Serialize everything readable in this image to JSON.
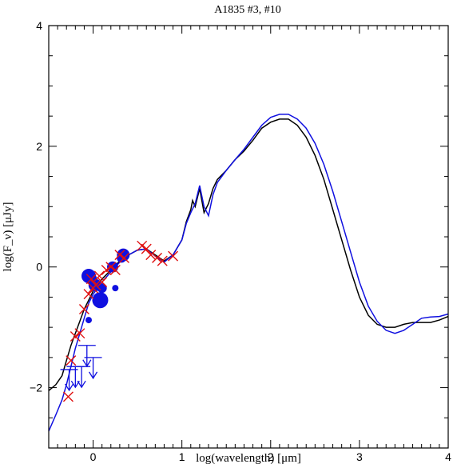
{
  "chart_data": {
    "type": "scatter",
    "title": "A1835 #3, #10",
    "xlabel": "log(wavelength) [μm]",
    "ylabel": "log(F_ν) [μJy]",
    "xlim": [
      -0.5,
      4
    ],
    "ylim": [
      -3,
      4
    ],
    "x_ticks": [
      0,
      1,
      2,
      3,
      4
    ],
    "y_ticks": [
      -2,
      0,
      2,
      4
    ],
    "grid": false,
    "colors": {
      "black_model": "#000000",
      "blue_model": "#1010e0",
      "model_points": "#e01010",
      "data": "#1010e0"
    },
    "series": [
      {
        "style": "line",
        "color": "#000000",
        "x": [
          -0.5,
          -0.42,
          -0.35,
          -0.3,
          -0.25,
          -0.2,
          -0.15,
          -0.1,
          -0.05,
          0.0,
          0.05,
          0.1,
          0.2,
          0.3,
          0.4,
          0.5,
          0.6,
          0.7,
          0.8,
          0.9,
          1.0,
          1.05,
          1.1,
          1.12,
          1.15,
          1.2,
          1.25,
          1.3,
          1.35,
          1.4,
          1.5,
          1.6,
          1.7,
          1.8,
          1.9,
          2.0,
          2.1,
          2.2,
          2.3,
          2.4,
          2.5,
          2.6,
          2.7,
          2.8,
          2.9,
          3.0,
          3.1,
          3.2,
          3.3,
          3.4,
          3.5,
          3.6,
          3.7,
          3.8,
          3.9,
          4.0
        ],
        "y": [
          -2.05,
          -1.95,
          -1.8,
          -1.55,
          -1.3,
          -1.1,
          -0.9,
          -0.7,
          -0.55,
          -0.4,
          -0.3,
          -0.2,
          -0.05,
          0.1,
          0.2,
          0.28,
          0.3,
          0.2,
          0.1,
          0.2,
          0.45,
          0.75,
          0.95,
          1.1,
          1.0,
          1.3,
          0.9,
          1.05,
          1.3,
          1.45,
          1.6,
          1.78,
          1.92,
          2.1,
          2.3,
          2.4,
          2.45,
          2.45,
          2.35,
          2.15,
          1.85,
          1.45,
          0.95,
          0.45,
          -0.05,
          -0.5,
          -0.8,
          -0.95,
          -1.0,
          -1.0,
          -0.95,
          -0.92,
          -0.92,
          -0.92,
          -0.88,
          -0.82
        ]
      },
      {
        "style": "line",
        "color": "#1010e0",
        "x": [
          -0.5,
          -0.42,
          -0.35,
          -0.3,
          -0.25,
          -0.2,
          -0.15,
          -0.1,
          -0.05,
          0.0,
          0.05,
          0.1,
          0.2,
          0.3,
          0.4,
          0.5,
          0.6,
          0.7,
          0.8,
          0.9,
          1.0,
          1.05,
          1.1,
          1.15,
          1.2,
          1.25,
          1.3,
          1.35,
          1.4,
          1.5,
          1.6,
          1.7,
          1.8,
          1.9,
          2.0,
          2.1,
          2.2,
          2.3,
          2.4,
          2.5,
          2.6,
          2.7,
          2.8,
          2.9,
          3.0,
          3.1,
          3.2,
          3.3,
          3.4,
          3.5,
          3.6,
          3.7,
          3.8,
          3.9,
          4.0
        ],
        "y": [
          -2.72,
          -2.45,
          -2.2,
          -1.95,
          -1.65,
          -1.35,
          -1.1,
          -0.85,
          -0.6,
          -0.45,
          -0.35,
          -0.25,
          -0.08,
          0.08,
          0.2,
          0.28,
          0.3,
          0.18,
          0.08,
          0.2,
          0.45,
          0.72,
          0.9,
          1.05,
          1.35,
          1.0,
          0.85,
          1.2,
          1.4,
          1.6,
          1.78,
          1.95,
          2.15,
          2.35,
          2.48,
          2.53,
          2.53,
          2.45,
          2.3,
          2.05,
          1.7,
          1.25,
          0.75,
          0.25,
          -0.25,
          -0.65,
          -0.9,
          -1.05,
          -1.1,
          -1.05,
          -0.95,
          -0.85,
          -0.83,
          -0.82,
          -0.78
        ]
      }
    ],
    "model_points": {
      "marker": "x",
      "color": "#e01010",
      "x": [
        -0.28,
        -0.25,
        -0.2,
        -0.15,
        -0.1,
        -0.05,
        -0.02,
        0.0,
        0.03,
        0.07,
        0.1,
        0.15,
        0.2,
        0.25,
        0.3,
        0.35,
        0.55,
        0.6,
        0.65,
        0.72,
        0.78,
        0.9
      ],
      "y": [
        -2.15,
        -1.55,
        -1.15,
        -1.1,
        -0.7,
        -0.45,
        -0.2,
        -0.35,
        -0.3,
        -0.15,
        -0.25,
        -0.05,
        0.0,
        -0.05,
        0.2,
        0.15,
        0.35,
        0.3,
        0.2,
        0.15,
        0.1,
        0.18
      ]
    },
    "data_points": {
      "marker": "circle",
      "color": "#1010e0",
      "x": [
        -0.05,
        -0.02,
        0.02,
        0.08,
        0.1,
        0.22,
        0.25,
        0.32,
        0.34,
        -0.05
      ],
      "y": [
        -0.15,
        -0.2,
        -0.3,
        -0.55,
        -0.35,
        0.0,
        -0.35,
        0.15,
        0.2,
        -0.88
      ],
      "size": [
        9,
        7,
        8,
        10,
        6,
        7,
        4,
        6,
        8,
        4
      ]
    },
    "upper_limits": {
      "marker": "cross-arrow",
      "color": "#1010e0",
      "x": [
        -0.27,
        -0.2,
        -0.13,
        -0.07,
        0.0
      ],
      "y": [
        -1.7,
        -1.65,
        -1.65,
        -1.3,
        -1.5
      ]
    }
  }
}
